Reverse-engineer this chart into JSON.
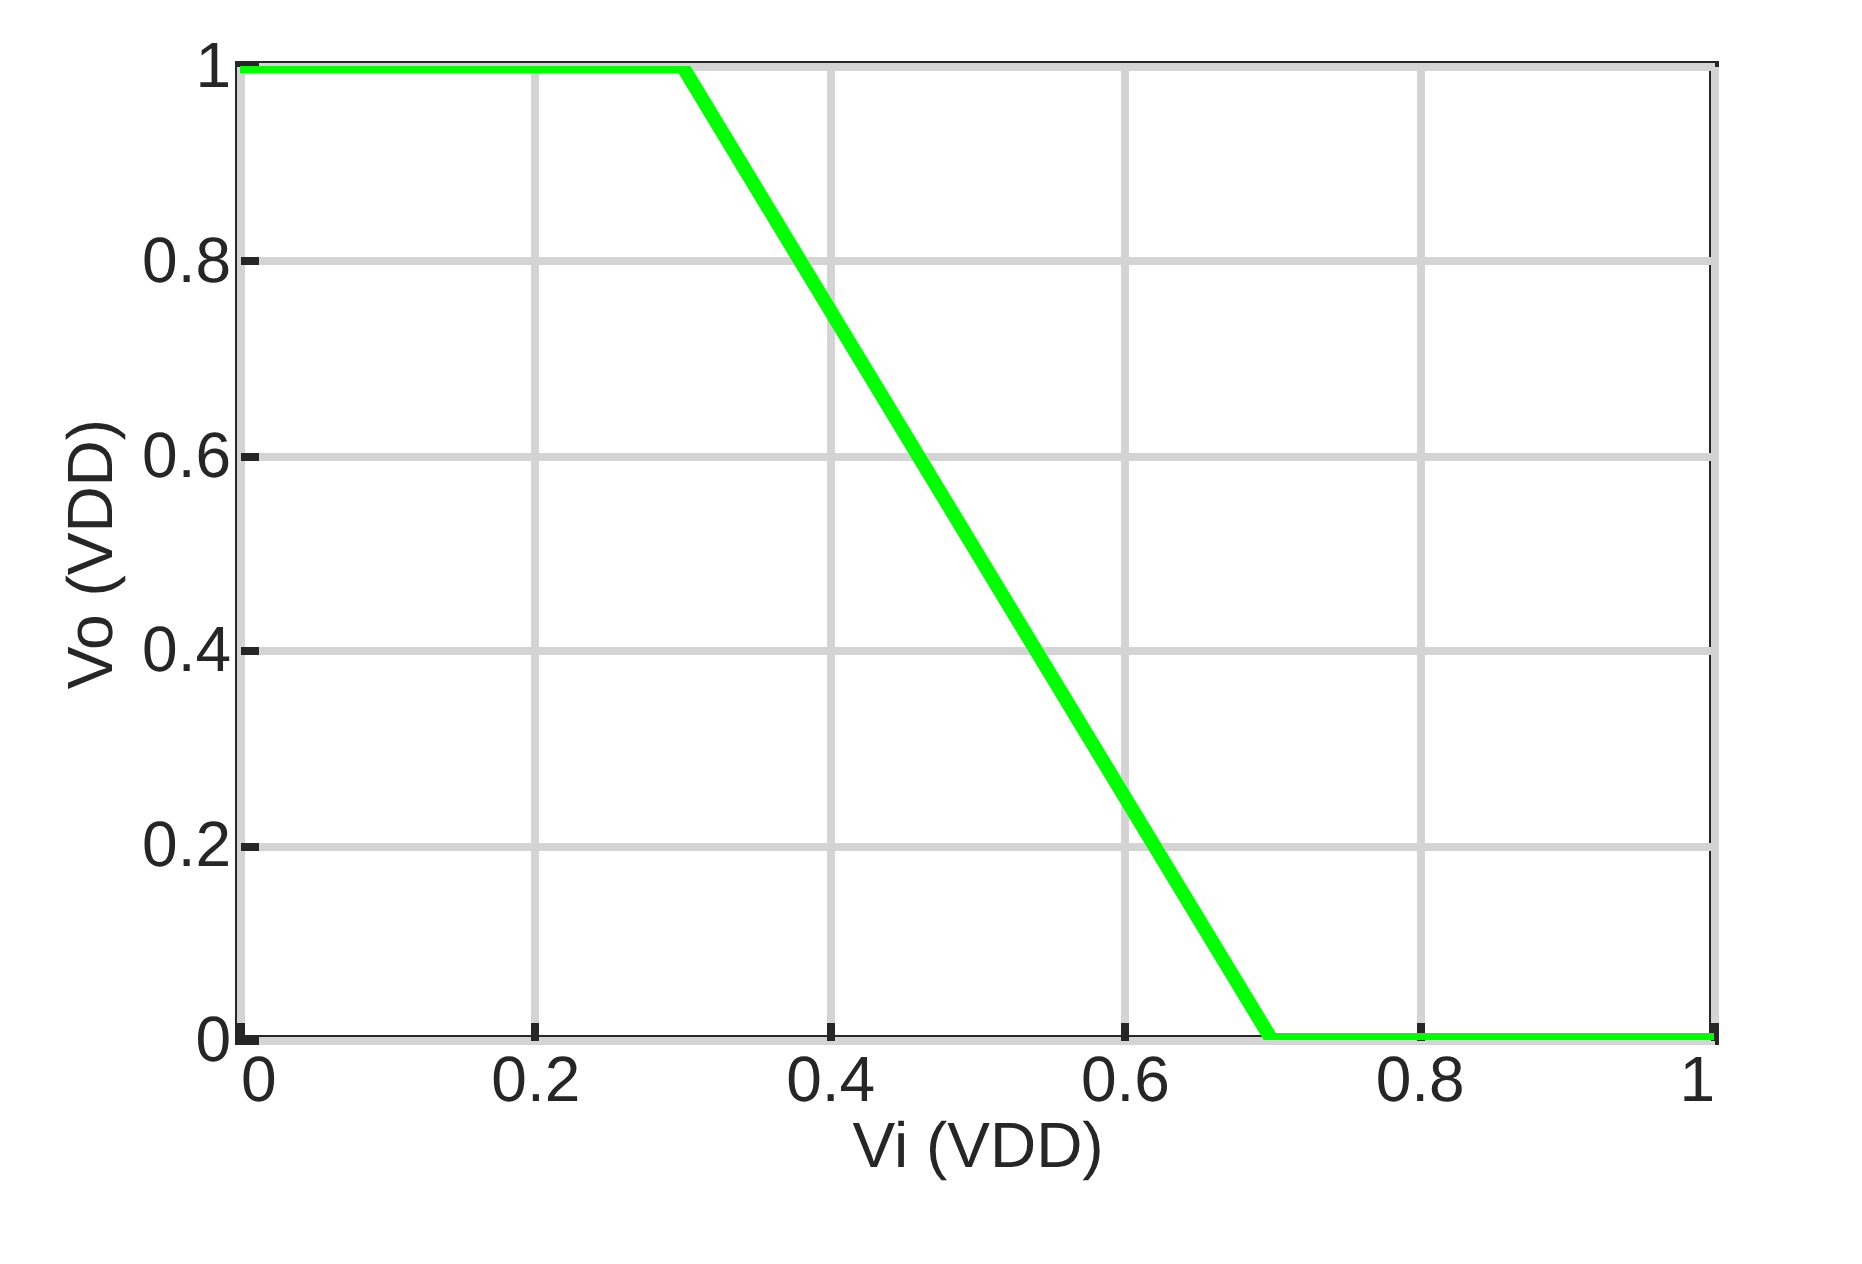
{
  "chart_data": {
    "type": "line",
    "xlabel": "Vi (VDD)",
    "ylabel": "Vo (VDD)",
    "x": [
      0,
      0.3,
      0.7,
      1
    ],
    "values": [
      1,
      1,
      0,
      0
    ],
    "color": "#00ff00",
    "xlim": [
      0,
      1
    ],
    "ylim": [
      0,
      1
    ],
    "xticks": [
      0,
      0.2,
      0.4,
      0.6,
      0.8,
      1
    ],
    "yticks": [
      0,
      0.2,
      0.4,
      0.6,
      0.8,
      1
    ],
    "grid": true
  }
}
